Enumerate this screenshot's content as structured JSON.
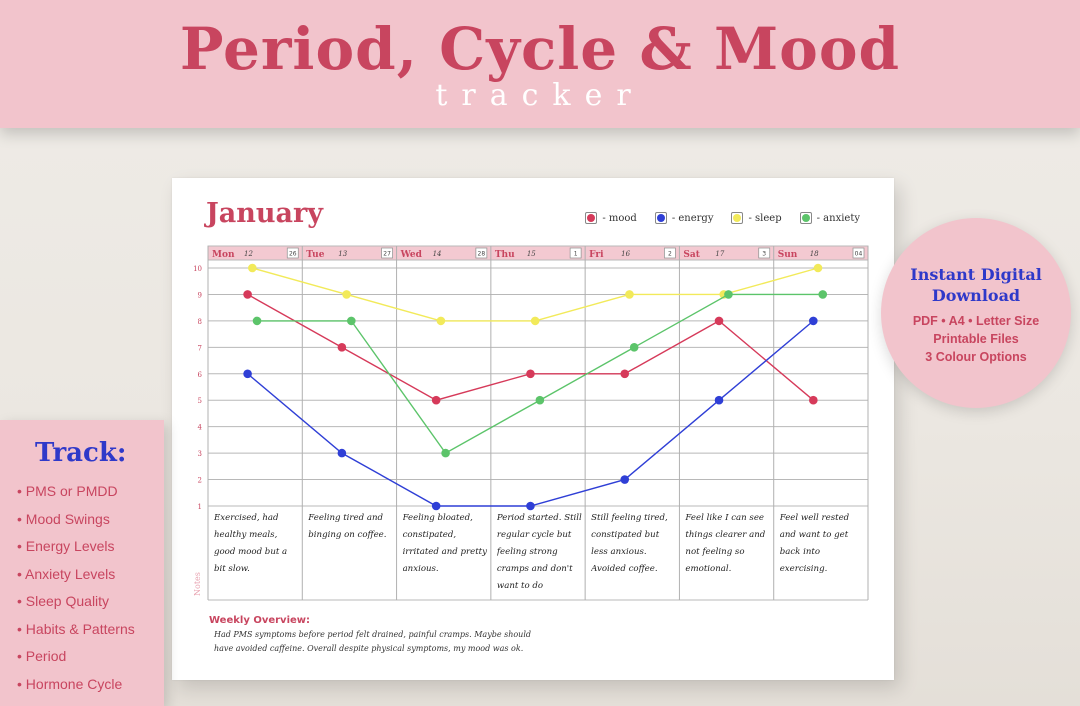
{
  "banner": {
    "title": "Period, Cycle & Mood",
    "subtitle": "tracker"
  },
  "sheet": {
    "title": "January",
    "legend": [
      {
        "label": "- mood",
        "color": "#d63a5a"
      },
      {
        "label": "- energy",
        "color": "#2f3fd6"
      },
      {
        "label": "- sleep",
        "color": "#f2ea5a"
      },
      {
        "label": "- anxiety",
        "color": "#5cc46a"
      }
    ],
    "notes_label": "Notes",
    "overview_title": "Weekly Overview:",
    "overview_text": "Had PMS symptoms before period felt drained, painful cramps. Maybe should have avoided caffeine. Overall despite physical symptoms, my mood was ok.",
    "days": [
      {
        "name": "Mon",
        "date": "12",
        "corner": "26",
        "note": "Exercised, had healthy meals, good mood but a bit slow."
      },
      {
        "name": "Tue",
        "date": "13",
        "corner": "27",
        "note": "Feeling tired and binging on coffee."
      },
      {
        "name": "Wed",
        "date": "14",
        "corner": "28",
        "note": "Feeling bloated, constipated, irritated and pretty anxious."
      },
      {
        "name": "Thu",
        "date": "15",
        "corner": "1",
        "note": "Period started. Still regular cycle but feeling strong cramps and don't want to do anything."
      },
      {
        "name": "Fri",
        "date": "16",
        "corner": "2",
        "note": "Still feeling tired, constipated but less anxious. Avoided coffee."
      },
      {
        "name": "Sat",
        "date": "17",
        "corner": "3",
        "note": "Feel like I can see things clearer and not feeling so emotional."
      },
      {
        "name": "Sun",
        "date": "18",
        "corner": "04",
        "note": "Feel well rested and want to get back into exercising."
      }
    ]
  },
  "chart_data": {
    "type": "line",
    "title": "January",
    "x": [
      "Mon",
      "Tue",
      "Wed",
      "Thu",
      "Fri",
      "Sat",
      "Sun"
    ],
    "ylim": [
      1,
      10
    ],
    "yticks": [
      1,
      2,
      3,
      4,
      5,
      6,
      7,
      8,
      9,
      10
    ],
    "grid": true,
    "legend_position": "top-right",
    "series": [
      {
        "name": "mood",
        "color": "#d63a5a",
        "values": [
          9,
          7,
          5,
          6,
          6,
          8,
          5
        ]
      },
      {
        "name": "energy",
        "color": "#2f3fd6",
        "values": [
          6,
          3,
          1,
          1,
          2,
          5,
          8
        ]
      },
      {
        "name": "sleep",
        "color": "#f2ea5a",
        "values": [
          10,
          9,
          8,
          8,
          9,
          9,
          10
        ]
      },
      {
        "name": "anxiety",
        "color": "#5cc46a",
        "values": [
          8,
          8,
          3,
          5,
          7,
          9,
          9
        ]
      }
    ]
  },
  "track": {
    "title": "Track:",
    "items": [
      "• PMS or PMDD",
      "• Mood Swings",
      "• Energy Levels",
      "• Anxiety Levels",
      "• Sleep Quality",
      "• Habits & Patterns",
      "• Period",
      "• Hormone Cycle"
    ]
  },
  "badge": {
    "title": "Instant Digital Download",
    "lines": [
      "PDF • A4 • Letter Size",
      "Printable Files",
      "3 Colour Options"
    ]
  }
}
